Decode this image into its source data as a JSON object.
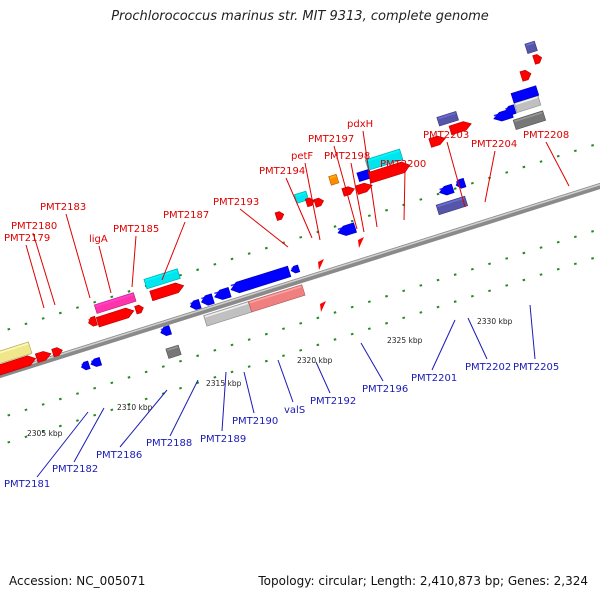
{
  "title": "Prochlorococcus marinus str. MIT 9313, complete genome",
  "footer": {
    "accession": "Accession: NC_005071",
    "summary": "Topology: circular; Length: 2,410,873 bp; Genes: 2,324"
  },
  "colors": {
    "forward": "#ff0000",
    "reverse": "#0000ff",
    "cyan": "#00e5ee",
    "magenta": "#ff33aa",
    "orange": "#ff8c00",
    "yellow": "#f0e68c",
    "purple": "#5555aa",
    "silver": "#c0c0c0",
    "rose": "#f08080",
    "gray": "#777777",
    "backbone": "#999999",
    "tick": "#228b22",
    "label_top": "#e00000",
    "label_bottom": "#1a1ab8"
  },
  "kbp_labels": [
    "2305 kbp",
    "2310 kbp",
    "2315 kbp",
    "2320 kbp",
    "2325 kbp",
    "2330 kbp"
  ],
  "top_labels": [
    "PMT2179",
    "PMT2180",
    "PMT2183",
    "ligA",
    "PMT2185",
    "PMT2187",
    "PMT2193",
    "PMT2194",
    "petF",
    "PMT2197",
    "PMT2198",
    "pdxH",
    "PMT2200",
    "PMT2203",
    "PMT2204",
    "PMT2208"
  ],
  "bottom_labels": [
    "PMT2181",
    "PMT2182",
    "PMT2186",
    "PMT2188",
    "PMT2189",
    "PMT2190",
    "valS",
    "PMT2192",
    "PMT2196",
    "PMT2201",
    "PMT2202",
    "PMT2205"
  ]
}
